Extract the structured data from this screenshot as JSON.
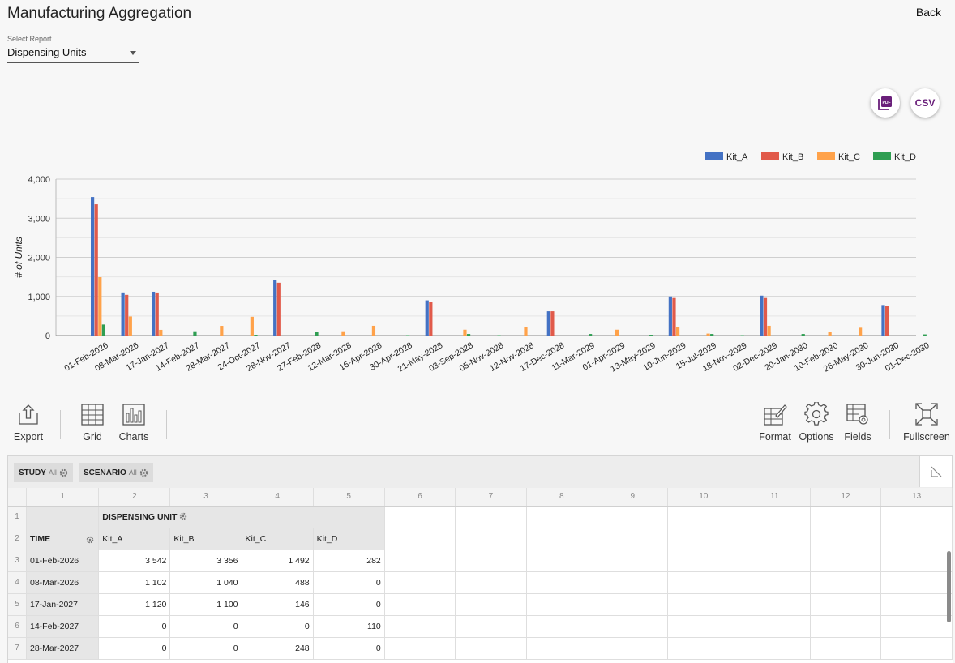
{
  "header": {
    "title": "Manufacturing Aggregation",
    "back_label": "Back"
  },
  "report_select": {
    "label": "Select Report",
    "value": "Dispensing Units"
  },
  "export_buttons": {
    "pdf_icon": "pdf-file-icon",
    "csv_label": "CSV"
  },
  "chart_data": {
    "type": "bar",
    "ylabel": "# of Units",
    "xlabel": "",
    "ylim": [
      0,
      4000
    ],
    "yticks": [
      0,
      1000,
      2000,
      3000,
      4000
    ],
    "ytick_labels": [
      "0",
      "1,000",
      "2,000",
      "3,000",
      "4,000"
    ],
    "legend_position": "top-right",
    "grid": true,
    "categories": [
      "01-Feb-2026",
      "08-Mar-2026",
      "17-Jan-2027",
      "14-Feb-2027",
      "28-Mar-2027",
      "24-Oct-2027",
      "28-Nov-2027",
      "27-Feb-2028",
      "12-Mar-2028",
      "16-Apr-2028",
      "30-Apr-2028",
      "21-May-2028",
      "03-Sep-2028",
      "05-Nov-2028",
      "12-Nov-2028",
      "17-Dec-2028",
      "11-Mar-2029",
      "01-Apr-2029",
      "13-May-2029",
      "10-Jun-2029",
      "15-Jul-2029",
      "18-Nov-2029",
      "02-Dec-2029",
      "20-Jan-2030",
      "10-Feb-2030",
      "26-May-2030",
      "30-Jun-2030",
      "01-Dec-2030"
    ],
    "series": [
      {
        "name": "Kit_A",
        "color": "#4472c4",
        "values": [
          3542,
          1102,
          1120,
          0,
          0,
          0,
          1420,
          0,
          0,
          0,
          0,
          900,
          0,
          0,
          0,
          620,
          0,
          0,
          0,
          1000,
          0,
          0,
          1020,
          0,
          0,
          0,
          780,
          0
        ]
      },
      {
        "name": "Kit_B",
        "color": "#e15a4a",
        "values": [
          3356,
          1040,
          1100,
          0,
          0,
          0,
          1350,
          0,
          0,
          0,
          0,
          850,
          0,
          0,
          0,
          620,
          0,
          0,
          0,
          960,
          0,
          0,
          960,
          0,
          0,
          0,
          760,
          0
        ]
      },
      {
        "name": "Kit_C",
        "color": "#ffa24a",
        "values": [
          1492,
          488,
          146,
          0,
          248,
          480,
          0,
          0,
          110,
          250,
          0,
          0,
          150,
          0,
          210,
          0,
          0,
          150,
          0,
          220,
          50,
          0,
          250,
          0,
          100,
          200,
          0,
          0
        ]
      },
      {
        "name": "Kit_D",
        "color": "#2f9e52",
        "values": [
          282,
          0,
          0,
          110,
          0,
          20,
          0,
          90,
          0,
          0,
          10,
          0,
          40,
          10,
          0,
          0,
          40,
          0,
          20,
          0,
          40,
          10,
          0,
          40,
          0,
          0,
          0,
          30
        ]
      }
    ]
  },
  "toolbar": {
    "export": "Export",
    "grid": "Grid",
    "charts": "Charts",
    "format": "Format",
    "options": "Options",
    "fields": "Fields",
    "fullscreen": "Fullscreen"
  },
  "filters": [
    {
      "name": "STUDY",
      "value": "All"
    },
    {
      "name": "SCENARIO",
      "value": "All"
    }
  ],
  "grid": {
    "col_numbers": [
      "1",
      "2",
      "3",
      "4",
      "5",
      "6",
      "7",
      "8",
      "9",
      "10",
      "11",
      "12",
      "13"
    ],
    "measure_header": "DISPENSING UNIT",
    "row_header": "TIME",
    "columns": [
      "Kit_A",
      "Kit_B",
      "Kit_C",
      "Kit_D"
    ],
    "rows": [
      {
        "n": "3",
        "time": "01-Feb-2026",
        "v": [
          "3 542",
          "3 356",
          "1 492",
          "282"
        ]
      },
      {
        "n": "4",
        "time": "08-Mar-2026",
        "v": [
          "1 102",
          "1 040",
          "488",
          "0"
        ]
      },
      {
        "n": "5",
        "time": "17-Jan-2027",
        "v": [
          "1 120",
          "1 100",
          "146",
          "0"
        ]
      },
      {
        "n": "6",
        "time": "14-Feb-2027",
        "v": [
          "0",
          "0",
          "0",
          "110"
        ]
      },
      {
        "n": "7",
        "time": "28-Mar-2027",
        "v": [
          "0",
          "0",
          "248",
          "0"
        ]
      }
    ]
  }
}
